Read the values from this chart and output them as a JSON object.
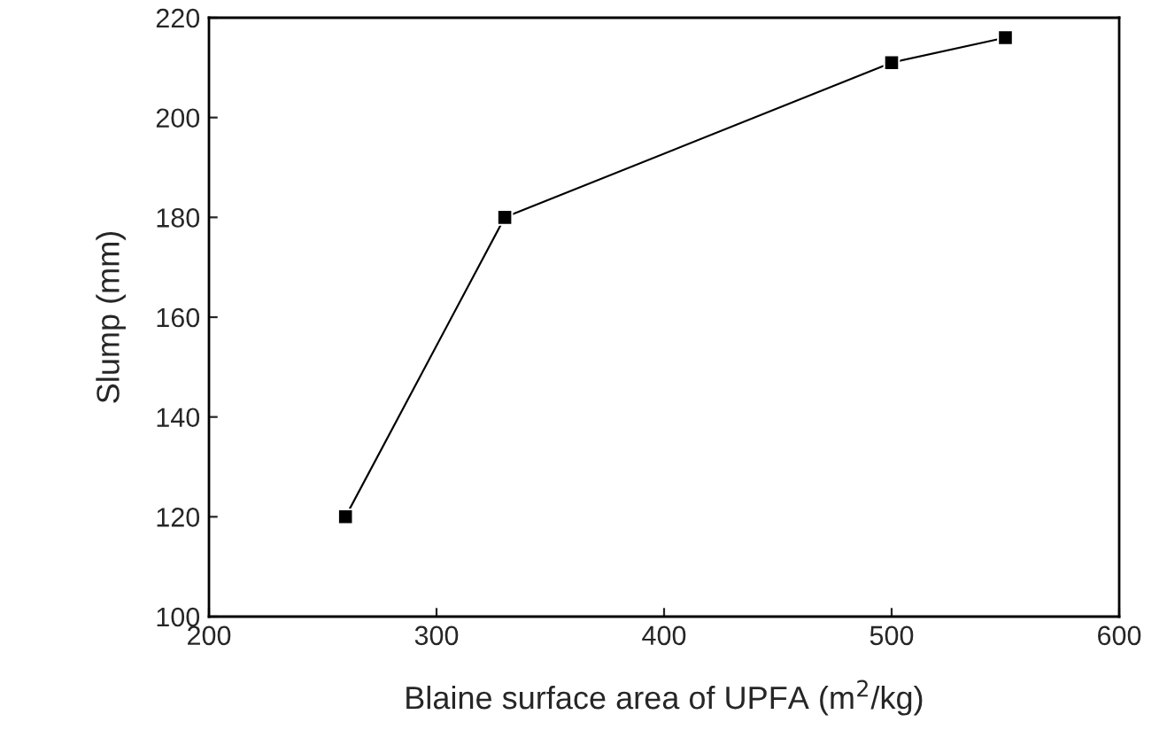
{
  "chart_data": {
    "type": "line",
    "xlabel": "Blaine surface area of UPFA (m$^{2}$/kg)",
    "ylabel": "Slump (mm)",
    "x": [
      260,
      330,
      500,
      550
    ],
    "series": [
      {
        "color": "#000000",
        "values": [
          120,
          180,
          211,
          216
        ]
      }
    ],
    "xlim": [
      200,
      600
    ],
    "xticks": [
      200,
      300,
      400,
      500,
      600
    ],
    "ylim": [
      100,
      220
    ],
    "yticks": [
      100,
      120,
      140,
      160,
      180,
      200,
      220
    ],
    "marker": "square",
    "line_style": "solid",
    "grid": false,
    "legend": false
  }
}
